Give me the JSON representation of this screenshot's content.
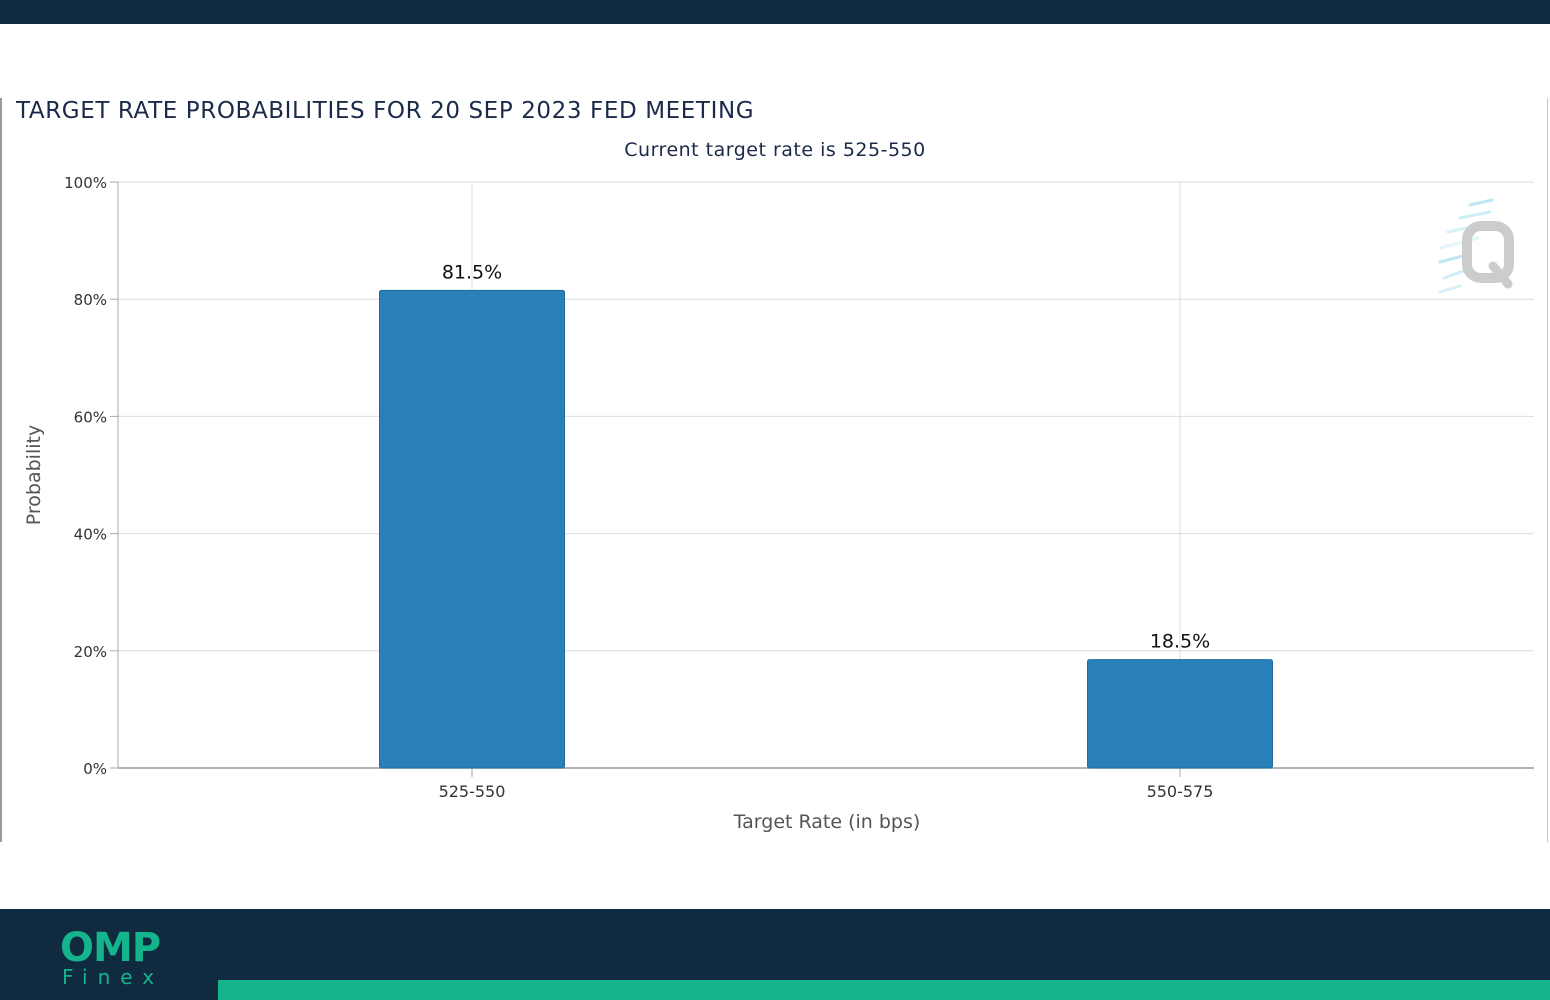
{
  "header": {},
  "chart_data": {
    "type": "bar",
    "title": "TARGET RATE PROBABILITIES FOR 20 SEP 2023 FED MEETING",
    "subtitle": "Current target rate is 525-550",
    "xlabel": "Target Rate (in bps)",
    "ylabel": "Probability",
    "categories": [
      "525-550",
      "550-575"
    ],
    "values": [
      81.5,
      18.5
    ],
    "data_labels": [
      "81.5%",
      "18.5%"
    ],
    "ylim": [
      0,
      100
    ],
    "yticks": [
      0,
      20,
      40,
      60,
      80,
      100
    ],
    "ytick_labels": [
      "0%",
      "20%",
      "40%",
      "60%",
      "80%",
      "100%"
    ],
    "grid": true,
    "bar_color": "#2980b9",
    "watermark_icon": "q-logo-watermark"
  },
  "footer": {
    "logo_top": "OMP",
    "logo_bottom": "Finex",
    "background_color": "#102a40",
    "accent_color": "#14b48c"
  }
}
